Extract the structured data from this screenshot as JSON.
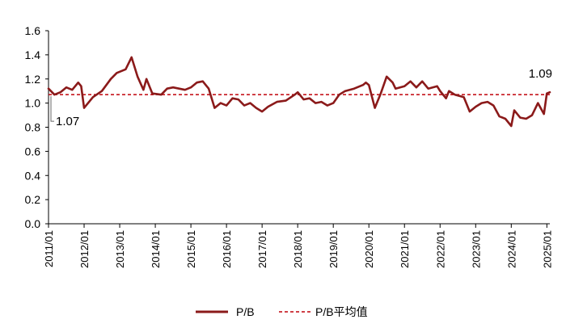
{
  "chart_data": {
    "type": "line",
    "title": "",
    "xlabel": "",
    "ylabel": "",
    "ylim": [
      0.0,
      1.6
    ],
    "yticks": [
      "0.0",
      "0.2",
      "0.4",
      "0.6",
      "0.8",
      "1.0",
      "1.2",
      "1.4",
      "1.6"
    ],
    "xticks": [
      "2011/01",
      "2012/01",
      "2013/01",
      "2014/01",
      "2015/01",
      "2016/01",
      "2017/01",
      "2018/01",
      "2019/01",
      "2020/01",
      "2021/01",
      "2022/01",
      "2023/01",
      "2024/01",
      "2025/01"
    ],
    "grid": false,
    "legend_position": "bottom",
    "series": [
      {
        "name": "P/B",
        "color": "#8b1a1a",
        "style": "solid",
        "points": [
          [
            "2011/01",
            1.12
          ],
          [
            "2011/03",
            1.07
          ],
          [
            "2011/05",
            1.09
          ],
          [
            "2011/07",
            1.13
          ],
          [
            "2011/09",
            1.11
          ],
          [
            "2011/11",
            1.17
          ],
          [
            "2011/12",
            1.14
          ],
          [
            "2012/01",
            0.96
          ],
          [
            "2012/04",
            1.05
          ],
          [
            "2012/07",
            1.1
          ],
          [
            "2012/10",
            1.2
          ],
          [
            "2012/12",
            1.25
          ],
          [
            "2013/03",
            1.28
          ],
          [
            "2013/05",
            1.38
          ],
          [
            "2013/07",
            1.22
          ],
          [
            "2013/09",
            1.11
          ],
          [
            "2013/10",
            1.2
          ],
          [
            "2013/12",
            1.08
          ],
          [
            "2014/03",
            1.07
          ],
          [
            "2014/05",
            1.12
          ],
          [
            "2014/07",
            1.13
          ],
          [
            "2014/09",
            1.12
          ],
          [
            "2014/11",
            1.11
          ],
          [
            "2015/01",
            1.13
          ],
          [
            "2015/03",
            1.17
          ],
          [
            "2015/05",
            1.18
          ],
          [
            "2015/07",
            1.12
          ],
          [
            "2015/09",
            0.96
          ],
          [
            "2015/11",
            1.0
          ],
          [
            "2016/01",
            0.98
          ],
          [
            "2016/03",
            1.04
          ],
          [
            "2016/05",
            1.03
          ],
          [
            "2016/07",
            0.98
          ],
          [
            "2016/09",
            1.0
          ],
          [
            "2016/11",
            0.96
          ],
          [
            "2017/01",
            0.93
          ],
          [
            "2017/03",
            0.97
          ],
          [
            "2017/06",
            1.01
          ],
          [
            "2017/09",
            1.02
          ],
          [
            "2017/12",
            1.07
          ],
          [
            "2018/01",
            1.09
          ],
          [
            "2018/03",
            1.03
          ],
          [
            "2018/05",
            1.04
          ],
          [
            "2018/07",
            1.0
          ],
          [
            "2018/09",
            1.01
          ],
          [
            "2018/11",
            0.98
          ],
          [
            "2019/01",
            1.0
          ],
          [
            "2019/03",
            1.07
          ],
          [
            "2019/05",
            1.1
          ],
          [
            "2019/08",
            1.12
          ],
          [
            "2019/11",
            1.15
          ],
          [
            "2019/12",
            1.17
          ],
          [
            "2020/01",
            1.15
          ],
          [
            "2020/03",
            0.96
          ],
          [
            "2020/05",
            1.08
          ],
          [
            "2020/07",
            1.22
          ],
          [
            "2020/09",
            1.17
          ],
          [
            "2020/10",
            1.12
          ],
          [
            "2021/01",
            1.14
          ],
          [
            "2021/03",
            1.18
          ],
          [
            "2021/05",
            1.13
          ],
          [
            "2021/07",
            1.18
          ],
          [
            "2021/09",
            1.12
          ],
          [
            "2021/12",
            1.14
          ],
          [
            "2022/01",
            1.1
          ],
          [
            "2022/03",
            1.04
          ],
          [
            "2022/04",
            1.1
          ],
          [
            "2022/06",
            1.07
          ],
          [
            "2022/09",
            1.05
          ],
          [
            "2022/11",
            0.93
          ],
          [
            "2023/01",
            0.97
          ],
          [
            "2023/03",
            1.0
          ],
          [
            "2023/05",
            1.01
          ],
          [
            "2023/07",
            0.98
          ],
          [
            "2023/09",
            0.89
          ],
          [
            "2023/11",
            0.87
          ],
          [
            "2024/01",
            0.81
          ],
          [
            "2024/02",
            0.94
          ],
          [
            "2024/04",
            0.88
          ],
          [
            "2024/06",
            0.87
          ],
          [
            "2024/08",
            0.9
          ],
          [
            "2024/10",
            1.0
          ],
          [
            "2024/12",
            0.91
          ],
          [
            "2025/01",
            1.08
          ],
          [
            "2025/02",
            1.09
          ]
        ]
      },
      {
        "name": "P/B平均值",
        "color": "#c0000a",
        "style": "dashed",
        "value": 1.07
      }
    ],
    "annotations": [
      {
        "text": "1.07",
        "anchor": "start-of-average"
      },
      {
        "text": "1.09",
        "anchor": "last-point"
      }
    ]
  }
}
